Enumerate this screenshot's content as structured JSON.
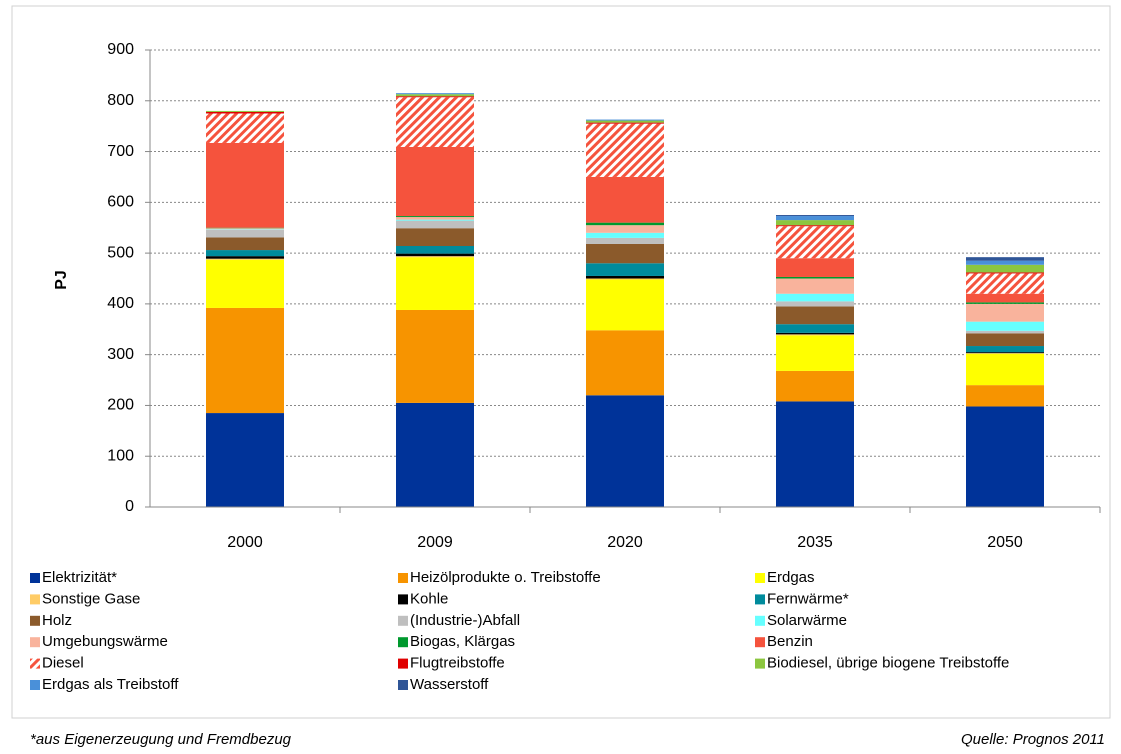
{
  "chart_data": {
    "type": "stacked_bar",
    "y_label": "PJ",
    "footnote": "*aus Eigenerzeugung und Fremdbezug",
    "source": "Quelle: Prognos 2011",
    "categories": [
      "2000",
      "2009",
      "2020",
      "2035",
      "2050"
    ],
    "ylim": [
      0,
      900
    ],
    "yticks": [
      0,
      100,
      200,
      300,
      400,
      500,
      600,
      700,
      800,
      900
    ],
    "grid": true,
    "series": [
      {
        "name": "Elektrizität*",
        "color": "#003399",
        "values": [
          185,
          205,
          220,
          208,
          198
        ]
      },
      {
        "name": "Heizölprodukte o. Treibstoffe",
        "color": "#f79400",
        "values": [
          207,
          183,
          128,
          60,
          42
        ]
      },
      {
        "name": "Erdgas",
        "color": "#ffff00",
        "values": [
          95,
          104,
          100,
          70,
          62
        ]
      },
      {
        "name": "Sonstige Gase",
        "color": "#ffcc66",
        "values": [
          2,
          2,
          2,
          2,
          1
        ]
      },
      {
        "name": "Kohle",
        "color": "#000000",
        "values": [
          5,
          5,
          5,
          3,
          2
        ]
      },
      {
        "name": "Fernwärme*",
        "color": "#008b9c",
        "values": [
          12,
          15,
          25,
          17,
          12
        ]
      },
      {
        "name": "Holz",
        "color": "#8b5a2b",
        "values": [
          25,
          35,
          38,
          35,
          25
        ]
      },
      {
        "name": "(Industrie-)Abfall",
        "color": "#bfbfbf",
        "values": [
          15,
          15,
          12,
          10,
          5
        ]
      },
      {
        "name": "Solarwärme",
        "color": "#66ffff",
        "values": [
          1,
          2,
          10,
          15,
          18
        ]
      },
      {
        "name": "Umgebungswärme",
        "color": "#f9b39c",
        "values": [
          2,
          5,
          15,
          30,
          35
        ]
      },
      {
        "name": "Biogas, Klärgas",
        "color": "#00992e",
        "values": [
          1,
          2,
          5,
          3,
          3
        ]
      },
      {
        "name": "Benzin",
        "color": "#f5533d",
        "values": [
          167,
          136,
          90,
          37,
          17
        ]
      },
      {
        "name": "Diesel",
        "color": "#f5533d",
        "hatch": true,
        "values": [
          58,
          98,
          105,
          63,
          40
        ]
      },
      {
        "name": "Flugtreibstoffe",
        "color": "#e00000",
        "values": [
          3,
          2,
          2,
          2,
          2
        ]
      },
      {
        "name": "Biodiesel, übrige biogene Treibstoffe",
        "color": "#8cc63f",
        "values": [
          2,
          4,
          4,
          10,
          15
        ]
      },
      {
        "name": "Erdgas als Treibstoff",
        "color": "#4a90d9",
        "values": [
          0,
          2,
          2,
          8,
          8
        ]
      },
      {
        "name": "Wasserstoff",
        "color": "#2f5597",
        "values": [
          0,
          0,
          0,
          2,
          7
        ]
      }
    ]
  }
}
